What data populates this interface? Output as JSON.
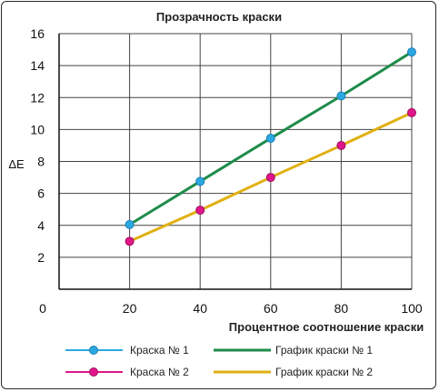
{
  "chart_data": {
    "type": "line",
    "title": "Прозрачность краски",
    "xlabel": "Процентное соотношение краски",
    "ylabel": "ΔE",
    "x": [
      20,
      40,
      60,
      80,
      100
    ],
    "x_ticks": [
      "20",
      "40",
      "60",
      "80",
      "100"
    ],
    "origin_label": "0",
    "xlim": [
      0,
      100
    ],
    "ylim": [
      0,
      16
    ],
    "y_ticks": [
      "2",
      "4",
      "6",
      "8",
      "10",
      "12",
      "14",
      "16"
    ],
    "grid": "vertical and horizontal",
    "legend_position": "bottom",
    "series": [
      {
        "name": "Краска № 1",
        "kind": "markers",
        "values": [
          4.05,
          6.75,
          9.45,
          12.1,
          14.85
        ],
        "color": "#29a9e0",
        "edge": "#1f7fb8"
      },
      {
        "name": "Краска № 2",
        "kind": "markers",
        "values": [
          3.0,
          4.95,
          7.0,
          9.0,
          11.05
        ],
        "color": "#e0168a",
        "edge": "#a01060"
      },
      {
        "name": "График краски № 1",
        "kind": "line",
        "values": [
          4.05,
          6.75,
          9.45,
          12.1,
          14.85
        ],
        "color": "#1e8c4a"
      },
      {
        "name": "График краски № 2",
        "kind": "line",
        "values": [
          3.0,
          4.95,
          7.0,
          9.0,
          11.05
        ],
        "color": "#e0b010"
      }
    ]
  }
}
